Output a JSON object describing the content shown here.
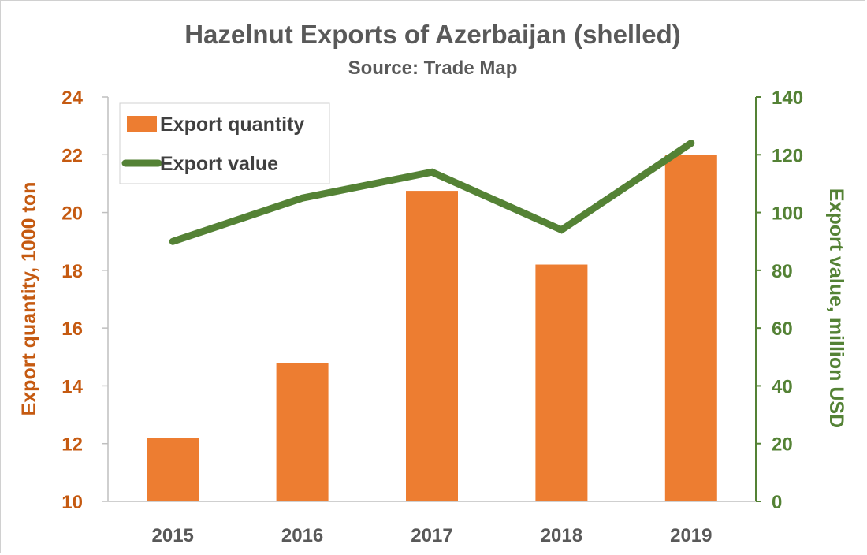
{
  "chart_data": {
    "type": "bar",
    "title": "Hazelnut Exports of Azerbaijan (shelled)",
    "subtitle": "Source: Trade Map",
    "categories": [
      "2015",
      "2016",
      "2017",
      "2018",
      "2019"
    ],
    "series": [
      {
        "name": "Export quantity",
        "type": "bar",
        "axis": "left",
        "color": "#ed7d31",
        "values": [
          12.2,
          14.8,
          20.75,
          18.2,
          22.0
        ]
      },
      {
        "name": "Export value",
        "type": "line",
        "axis": "right",
        "color": "#548235",
        "values": [
          90,
          105,
          114,
          94,
          124
        ]
      }
    ],
    "ylabel_left": "Export quantity, 1000  ton",
    "ylabel_right": "Export value, million USD",
    "ylim_left": [
      10,
      24
    ],
    "yticks_left": [
      10,
      12,
      14,
      16,
      18,
      20,
      22,
      24
    ],
    "ylim_right": [
      0,
      140
    ],
    "yticks_right": [
      0,
      20,
      40,
      60,
      80,
      100,
      120,
      140
    ],
    "left_axis_color": "#c55a11",
    "right_axis_color": "#548235",
    "grid": false,
    "legend_position": "top-left"
  }
}
